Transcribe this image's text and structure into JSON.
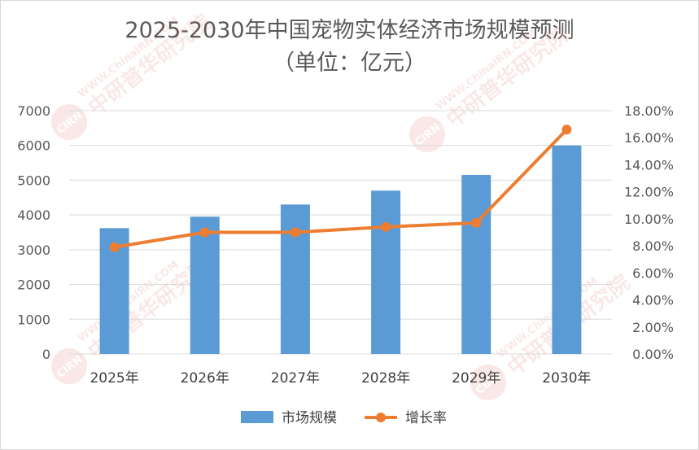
{
  "chart_data": {
    "type": "bar",
    "title": "2025-2030年中国宠物实体经济市场规模预测",
    "subtitle": "（单位：亿元）",
    "categories": [
      "2025年",
      "2026年",
      "2027年",
      "2028年",
      "2029年",
      "2030年"
    ],
    "series": [
      {
        "name": "市场规模",
        "type": "bar",
        "axis": "left",
        "color": "#5b9bd5",
        "values": [
          3620,
          3950,
          4300,
          4700,
          5150,
          6000
        ]
      },
      {
        "name": "增长率",
        "type": "line",
        "axis": "right",
        "color": "#ed7d31",
        "values": [
          7.9,
          9.0,
          9.0,
          9.4,
          9.7,
          16.6
        ]
      }
    ],
    "y_left": {
      "min": 0,
      "max": 7000,
      "step": 1000,
      "ticks": [
        "0",
        "1000",
        "2000",
        "3000",
        "4000",
        "5000",
        "6000",
        "7000"
      ]
    },
    "y_right": {
      "min": 0,
      "max": 18,
      "step": 2,
      "unit": "%",
      "ticks": [
        "0.00%",
        "2.00%",
        "4.00%",
        "6.00%",
        "8.00%",
        "10.00%",
        "12.00%",
        "14.00%",
        "16.00%",
        "18.00%"
      ]
    },
    "grid": true,
    "legend": "bottom"
  },
  "watermark": {
    "logo_text": "CIRN",
    "url_text": "WWW.ChinaIRN.COM",
    "brand_text": "中研普华研究院",
    "color": "#d9534f"
  }
}
